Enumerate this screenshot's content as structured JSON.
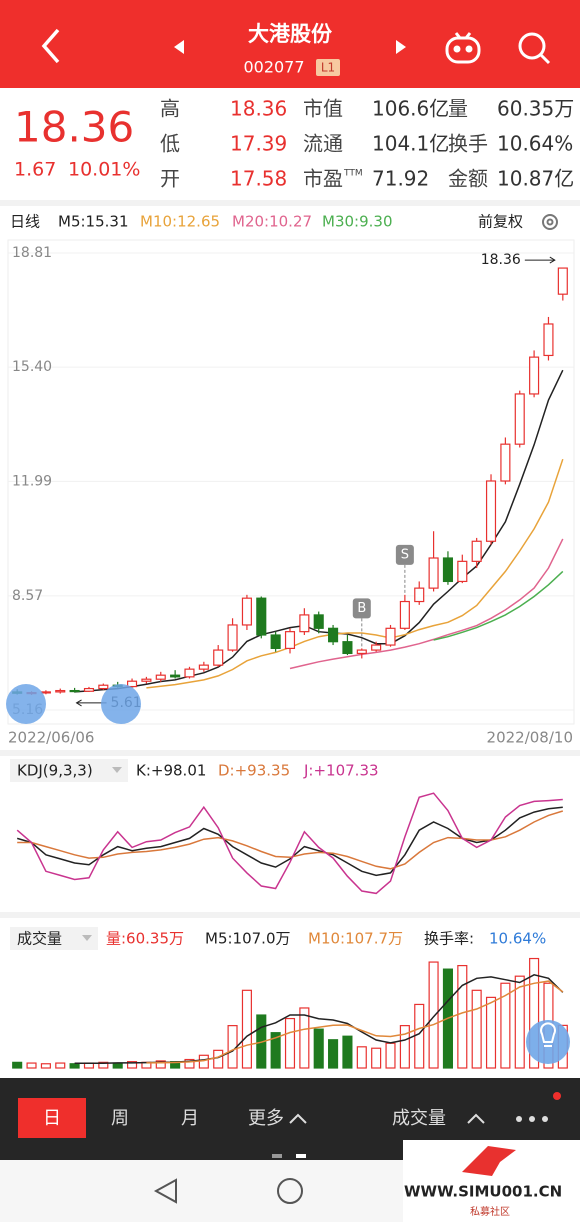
{
  "header": {
    "title": "大港股份",
    "code": "002077",
    "badge": "L1"
  },
  "quote": {
    "price": "18.36",
    "change": "1.67",
    "change_pct": "10.01%",
    "stats": [
      {
        "label": "高",
        "value": "18.36"
      },
      {
        "label": "低",
        "value": "17.39"
      },
      {
        "label": "开",
        "value": "17.58"
      },
      {
        "label": "市值",
        "value": "106.6亿"
      },
      {
        "label": "流通",
        "value": "104.1亿"
      },
      {
        "label": "市盈",
        "sup": "TTM",
        "value": "71.92"
      },
      {
        "label": "量",
        "value": "60.35万"
      },
      {
        "label": "换手",
        "value": "10.64%"
      },
      {
        "label": "金额",
        "value": "10.87亿"
      }
    ]
  },
  "chart_data": [
    {
      "type": "candlestick",
      "title": "日线",
      "adjust": "前复权",
      "categories": [
        "2022/06/06",
        null,
        null,
        null,
        null,
        null,
        null,
        null,
        null,
        null,
        null,
        null,
        null,
        null,
        null,
        null,
        null,
        null,
        null,
        null,
        null,
        null,
        null,
        null,
        null,
        null,
        null,
        null,
        null,
        null,
        null,
        null,
        null,
        null,
        null,
        null,
        null,
        null,
        "2022/08/10"
      ],
      "open": [
        5.7,
        5.66,
        5.68,
        5.7,
        5.74,
        5.72,
        5.8,
        5.9,
        5.86,
        6.02,
        6.08,
        6.2,
        6.15,
        6.38,
        6.5,
        6.95,
        7.7,
        8.5,
        7.4,
        7.0,
        7.5,
        8.0,
        7.6,
        7.2,
        6.85,
        6.95,
        7.1,
        7.6,
        8.4,
        8.8,
        9.7,
        9.0,
        9.6,
        10.2,
        12.0,
        13.1,
        14.6,
        15.75,
        17.58
      ],
      "high": [
        5.78,
        5.72,
        5.75,
        5.8,
        5.82,
        5.85,
        5.95,
        6.0,
        6.1,
        6.15,
        6.3,
        6.35,
        6.45,
        6.6,
        7.1,
        7.9,
        8.6,
        8.55,
        7.5,
        7.6,
        8.2,
        8.1,
        7.7,
        7.4,
        7.0,
        7.2,
        7.7,
        8.6,
        9.0,
        10.5,
        9.9,
        9.8,
        10.3,
        12.2,
        13.3,
        14.7,
        15.9,
        16.9,
        18.36
      ],
      "low": [
        5.62,
        5.61,
        5.63,
        5.65,
        5.68,
        5.7,
        5.76,
        5.82,
        5.84,
        5.95,
        6.0,
        6.1,
        6.1,
        6.3,
        6.45,
        6.9,
        7.55,
        7.3,
        6.9,
        6.85,
        7.4,
        7.45,
        7.1,
        6.8,
        6.7,
        6.9,
        7.05,
        7.55,
        8.3,
        8.7,
        8.9,
        8.95,
        9.4,
        10.1,
        11.9,
        13.0,
        14.5,
        15.6,
        17.39
      ],
      "close": [
        5.66,
        5.68,
        5.7,
        5.74,
        5.72,
        5.8,
        5.9,
        5.86,
        6.02,
        6.08,
        6.2,
        6.15,
        6.38,
        6.5,
        6.95,
        7.7,
        8.5,
        7.4,
        7.0,
        7.5,
        8.0,
        7.6,
        7.2,
        6.85,
        6.95,
        7.1,
        7.6,
        8.4,
        8.8,
        9.7,
        9.0,
        9.6,
        10.2,
        12.0,
        13.1,
        14.6,
        15.7,
        16.69,
        18.36
      ],
      "up_color": "#e8312f",
      "down_color": "#1f7a1f",
      "series": [
        {
          "name": "M5:15.31",
          "color": "#222222",
          "values": [
            null,
            null,
            null,
            null,
            5.7,
            5.73,
            5.77,
            5.8,
            5.86,
            5.93,
            6.01,
            6.06,
            6.17,
            6.27,
            6.44,
            6.74,
            7.21,
            7.41,
            7.51,
            7.62,
            7.68,
            7.5,
            7.46,
            7.43,
            7.32,
            7.14,
            7.14,
            7.38,
            7.77,
            8.32,
            8.7,
            9.1,
            9.46,
            10.1,
            10.78,
            11.9,
            13.08,
            14.42,
            15.31
          ]
        },
        {
          "name": "M10:12.65",
          "color": "#e8a33a",
          "values": [
            null,
            null,
            null,
            null,
            null,
            null,
            null,
            null,
            null,
            5.82,
            5.87,
            5.92,
            5.99,
            6.06,
            6.18,
            6.37,
            6.63,
            6.78,
            6.88,
            7.03,
            7.21,
            7.35,
            7.42,
            7.46,
            7.46,
            7.4,
            7.31,
            7.41,
            7.56,
            7.68,
            7.78,
            7.98,
            8.28,
            8.79,
            9.3,
            9.91,
            10.57,
            11.37,
            12.65
          ]
        },
        {
          "name": "M20:10.27",
          "color": "#e0648e",
          "values": [
            null,
            null,
            null,
            null,
            null,
            null,
            null,
            null,
            null,
            null,
            null,
            null,
            null,
            null,
            null,
            null,
            null,
            null,
            null,
            6.4,
            6.5,
            6.6,
            6.68,
            6.75,
            6.82,
            6.88,
            6.95,
            7.04,
            7.14,
            7.27,
            7.41,
            7.54,
            7.68,
            7.9,
            8.15,
            8.45,
            8.8,
            9.4,
            10.27
          ]
        },
        {
          "name": "M30:9.30",
          "color": "#4caf50",
          "values": [
            null,
            null,
            null,
            null,
            null,
            null,
            null,
            null,
            null,
            null,
            null,
            null,
            null,
            null,
            null,
            null,
            null,
            null,
            null,
            null,
            null,
            null,
            null,
            null,
            null,
            null,
            null,
            null,
            null,
            7.25,
            7.35,
            7.48,
            7.62,
            7.8,
            8.0,
            8.25,
            8.55,
            8.9,
            9.3
          ]
        }
      ],
      "ylim": [
        5.16,
        18.81
      ],
      "yticks": [
        18.81,
        {
          "value": 15.4,
          "label": "15.40"
        },
        11.99,
        8.57,
        5.16
      ],
      "grid": true,
      "max_label": 18.36,
      "min_label": 5.61,
      "trade_marks": [
        "B",
        "S"
      ]
    },
    {
      "type": "line",
      "title": "KDJ(9,3,3)",
      "ylim": [
        -15,
        125
      ],
      "series": [
        {
          "name": "K:+98.01",
          "color": "#222222",
          "values": [
            60,
            55,
            40,
            35,
            30,
            28,
            40,
            50,
            45,
            48,
            50,
            55,
            60,
            72,
            65,
            50,
            40,
            30,
            25,
            35,
            50,
            45,
            40,
            30,
            20,
            15,
            18,
            40,
            70,
            80,
            72,
            60,
            55,
            58,
            70,
            85,
            92,
            96,
            98.01
          ]
        },
        {
          "name": "D:+93.35",
          "color": "#d9783b",
          "values": [
            55,
            55,
            50,
            45,
            40,
            36,
            37,
            41,
            43,
            44,
            46,
            49,
            53,
            59,
            61,
            57,
            51,
            44,
            38,
            37,
            41,
            43,
            42,
            38,
            32,
            26,
            23,
            29,
            43,
            55,
            61,
            60,
            58,
            58,
            62,
            70,
            80,
            88,
            93.35
          ]
        },
        {
          "name": "J:+107.33",
          "color": "#c9348f",
          "values": [
            70,
            55,
            20,
            15,
            10,
            12,
            46,
            68,
            49,
            56,
            58,
            67,
            74,
            98,
            73,
            36,
            18,
            2,
            -1,
            31,
            68,
            49,
            36,
            14,
            -4,
            -7,
            8,
            62,
            110,
            115,
            94,
            60,
            49,
            58,
            86,
            100,
            105,
            106,
            107.33
          ]
        }
      ]
    },
    {
      "type": "bar",
      "title": "成交量",
      "current": "量:60.35万",
      "ylim": [
        0,
        160
      ],
      "values": [
        8,
        7,
        6,
        7,
        6,
        7,
        8,
        6,
        9,
        8,
        10,
        9,
        12,
        18,
        25,
        60,
        110,
        75,
        50,
        70,
        85,
        55,
        40,
        45,
        30,
        28,
        35,
        60,
        90,
        150,
        140,
        145,
        110,
        100,
        120,
        130,
        155,
        120,
        60.35
      ],
      "series": [
        {
          "name": "M5:107.0万",
          "color": "#222222",
          "values": [
            null,
            null,
            null,
            null,
            6.8,
            6.8,
            6.8,
            7.2,
            7.2,
            7.6,
            8.2,
            8.4,
            9.6,
            11.4,
            14.8,
            24.0,
            45.0,
            57.6,
            64.0,
            75.0,
            75.0,
            69.8,
            68.0,
            63.0,
            51.0,
            39.6,
            35.6,
            39.6,
            48.6,
            72.6,
            95.0,
            117.0,
            127.0,
            129.0,
            125.0,
            121.0,
            132.0,
            127.0,
            107.0
          ]
        },
        {
          "name": "M10:107.7万",
          "color": "#e0883a",
          "values": [
            null,
            null,
            null,
            null,
            null,
            null,
            null,
            null,
            null,
            7.2,
            7.4,
            7.8,
            8.6,
            10.5,
            15.4,
            25.6,
            32.3,
            36.5,
            42.8,
            50.3,
            54.9,
            57.7,
            60.4,
            60.9,
            53.1,
            45.6,
            44.6,
            48.0,
            56.0,
            61.5,
            70.5,
            78.0,
            83.5,
            92.5,
            102.7,
            114.7,
            120.0,
            123.0,
            107.7
          ]
        }
      ],
      "turnover_label": "换手率:",
      "turnover": "10.64%"
    }
  ],
  "tabs": [
    "日",
    "周",
    "月",
    "更多"
  ],
  "right_tab": "成交量",
  "watermark": {
    "site": "WWW.SIMU001.CN",
    "name": "私募社区"
  }
}
